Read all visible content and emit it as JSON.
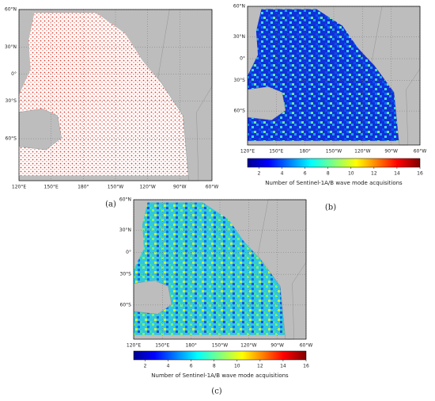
{
  "panels": [
    {
      "label": "(a)",
      "lat_ticks": [
        {
          "value": 60,
          "label": "60°N"
        },
        {
          "value": 30,
          "label": "30°N"
        },
        {
          "value": 0,
          "label": "0°"
        },
        {
          "value": -30,
          "label": "30°S"
        },
        {
          "value": -60,
          "label": "60°S"
        }
      ],
      "lon_ticks": [
        {
          "value": 120,
          "label": "120°E"
        },
        {
          "value": 150,
          "label": "150°E"
        },
        {
          "value": 180,
          "label": "180°"
        },
        {
          "value": 210,
          "label": "150°W"
        },
        {
          "value": 240,
          "label": "120°W"
        },
        {
          "value": 270,
          "label": "90°W"
        },
        {
          "value": 300,
          "label": "60°W"
        }
      ],
      "lonlim": [
        120,
        300
      ],
      "latlim": [
        60,
        -77
      ]
    },
    {
      "label": "(b)",
      "lat_ticks": [
        {
          "value": 60,
          "label": "60°N"
        },
        {
          "value": 30,
          "label": "30°N"
        },
        {
          "value": 0,
          "label": "0°"
        },
        {
          "value": -30,
          "label": "30°S"
        },
        {
          "value": -60,
          "label": "60°S"
        }
      ],
      "lon_ticks": [
        {
          "value": 120,
          "label": "120°E"
        },
        {
          "value": 150,
          "label": "150°E"
        },
        {
          "value": 180,
          "label": "180°"
        },
        {
          "value": 210,
          "label": "150°W"
        },
        {
          "value": 240,
          "label": "120°W"
        },
        {
          "value": 270,
          "label": "90°W"
        },
        {
          "value": 300,
          "label": "60°W"
        }
      ],
      "lonlim": [
        120,
        300
      ],
      "latlim": [
        60,
        -77
      ],
      "colorbar": {
        "label": "Number of Sentinel-1A/B wave mode acquisitions",
        "range": [
          1,
          16
        ],
        "ticks": [
          2,
          4,
          6,
          8,
          10,
          12,
          14,
          16
        ]
      }
    },
    {
      "label": "(c)",
      "lat_ticks": [
        {
          "value": 60,
          "label": "60°N"
        },
        {
          "value": 30,
          "label": "30°N"
        },
        {
          "value": 0,
          "label": "0°"
        },
        {
          "value": -30,
          "label": "30°S"
        },
        {
          "value": -60,
          "label": "60°S"
        }
      ],
      "lon_ticks": [
        {
          "value": 120,
          "label": "120°E"
        },
        {
          "value": 150,
          "label": "150°E"
        },
        {
          "value": 180,
          "label": "180°"
        },
        {
          "value": 210,
          "label": "150°W"
        },
        {
          "value": 240,
          "label": "120°W"
        },
        {
          "value": 270,
          "label": "90°W"
        },
        {
          "value": 300,
          "label": "60°W"
        }
      ],
      "lonlim": [
        120,
        300
      ],
      "latlim": [
        60,
        -77
      ],
      "colorbar": {
        "label": "Number of Sentinel-1A/B wave mode acquisitions",
        "range": [
          1,
          16
        ],
        "ticks": [
          2,
          4,
          6,
          8,
          10,
          12,
          14,
          16
        ]
      }
    }
  ]
}
